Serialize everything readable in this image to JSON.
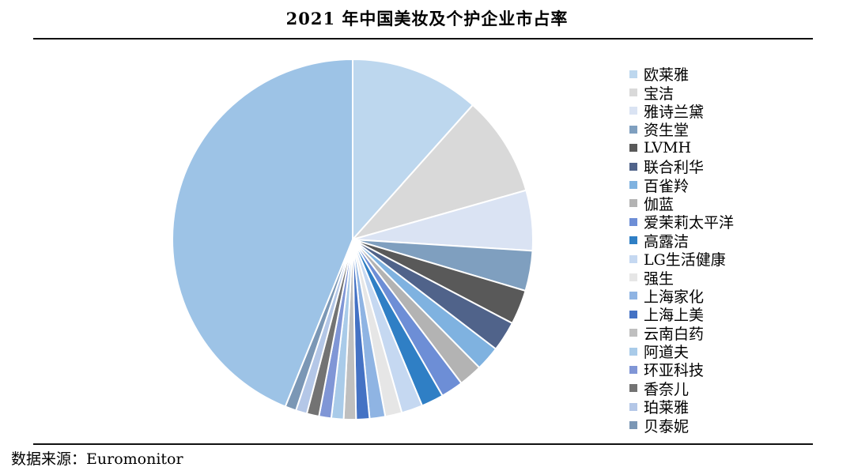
{
  "chart_data": {
    "type": "pie",
    "title": "2021 年中国美妆及个护企业市占率",
    "legend_position": "right",
    "start_angle_deg": 0,
    "direction": "clockwise",
    "slices": [
      {
        "label": "欧莱雅",
        "value": 11.6,
        "color": "#bdd7ee"
      },
      {
        "label": "宝洁",
        "value": 9.0,
        "color": "#d9d9d9"
      },
      {
        "label": "雅诗兰黛",
        "value": 5.4,
        "color": "#dae3f3"
      },
      {
        "label": "资生堂",
        "value": 3.6,
        "color": "#7f9fbf"
      },
      {
        "label": "LVMH",
        "value": 3.1,
        "color": "#595959"
      },
      {
        "label": "联合利华",
        "value": 2.7,
        "color": "#50638a"
      },
      {
        "label": "百雀羚",
        "value": 2.2,
        "color": "#7fb2e0"
      },
      {
        "label": "伽蓝",
        "value": 2.1,
        "color": "#b3b3b3"
      },
      {
        "label": "爱茉莉太平洋",
        "value": 2.0,
        "color": "#6d8ed6"
      },
      {
        "label": "高露洁",
        "value": 2.0,
        "color": "#2f7fc5"
      },
      {
        "label": "LG生活健康",
        "value": 1.9,
        "color": "#c5d8f1"
      },
      {
        "label": "强生",
        "value": 1.5,
        "color": "#e6e6e6"
      },
      {
        "label": "上海家化",
        "value": 1.4,
        "color": "#8fb4e3"
      },
      {
        "label": "上海上美",
        "value": 1.2,
        "color": "#4472c4"
      },
      {
        "label": "云南白药",
        "value": 1.1,
        "color": "#bfbfbf"
      },
      {
        "label": "阿道夫",
        "value": 1.1,
        "color": "#a9cbe9"
      },
      {
        "label": "环亚科技",
        "value": 1.1,
        "color": "#8096d6"
      },
      {
        "label": "香奈儿",
        "value": 1.1,
        "color": "#737373"
      },
      {
        "label": "珀莱雅",
        "value": 1.0,
        "color": "#b4c7e7"
      },
      {
        "label": "贝泰妮",
        "value": 1.0,
        "color": "#7b97b5"
      },
      {
        "label": "",
        "value": 43.9,
        "color": "#9dc3e6"
      }
    ]
  },
  "source": "数据来源：Euromonitor"
}
